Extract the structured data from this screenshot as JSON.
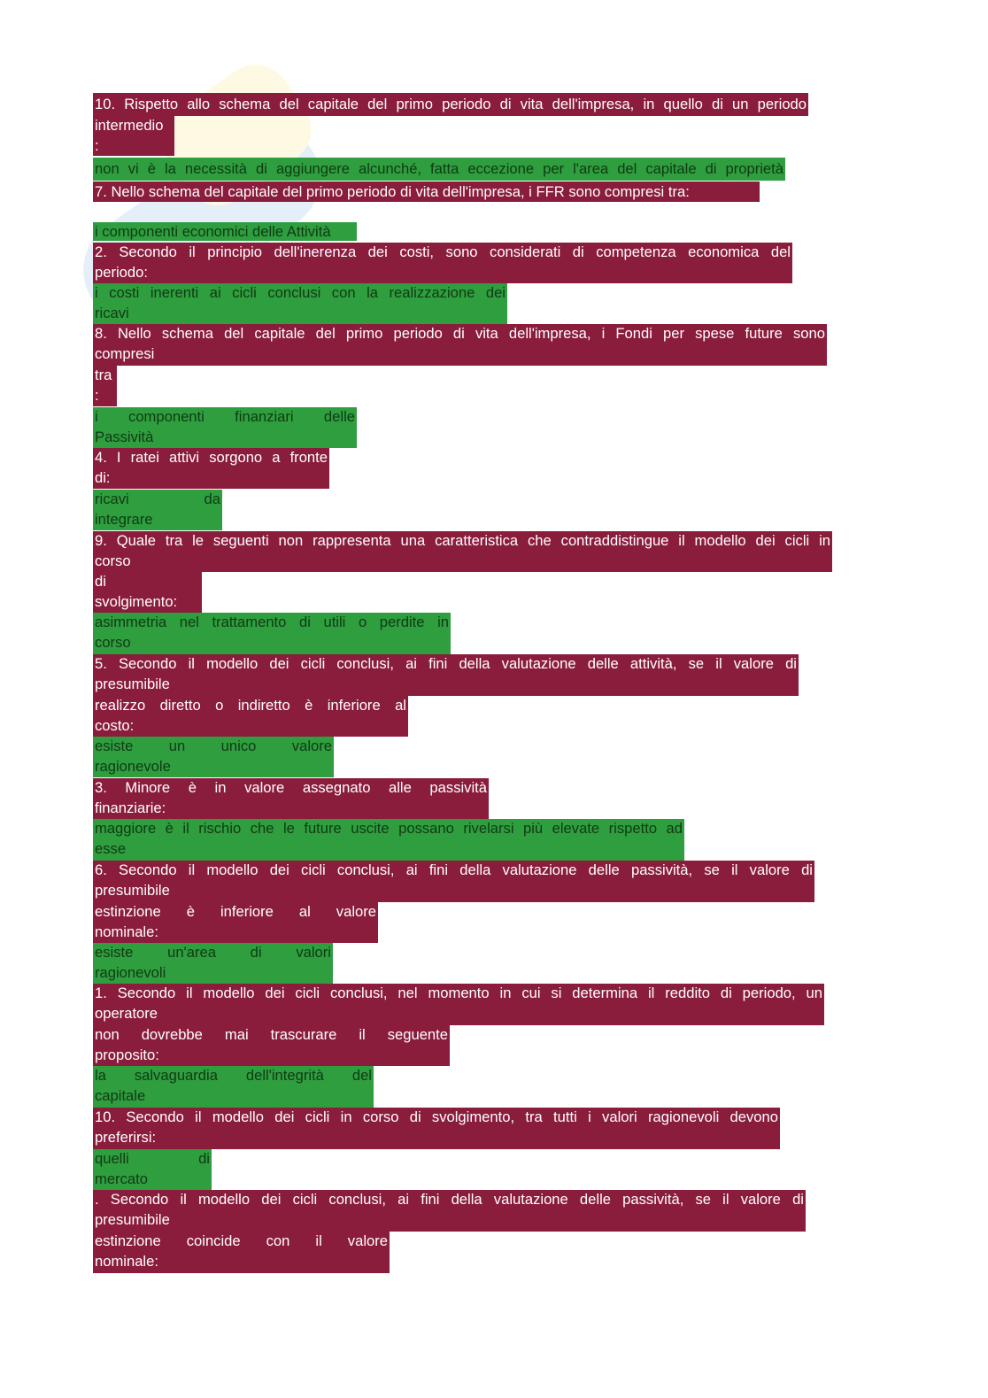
{
  "colors": {
    "question_bg": "#8a1c3c",
    "answer_bg": "#2e9e3f"
  },
  "blocks": [
    {
      "type": "question",
      "lines": [
        "10. Rispetto allo schema del capitale del primo periodo di vita dell'impresa, in quello di un periodo"
      ]
    },
    {
      "type": "question",
      "lines": [
        "intermedio",
        ":"
      ]
    },
    {
      "type": "answer",
      "lines": [
        "non vi è la necessità di aggiungere alcunché, fatta eccezione per l'area del capitale di proprietà"
      ]
    },
    {
      "type": "question",
      "lines": [
        "7. Nello schema del capitale del primo periodo di vita dell'impresa, i FFR sono compresi tra:"
      ]
    },
    {
      "type": "answer",
      "lines": [
        "i componenti economici delle Attività"
      ]
    },
    {
      "type": "question",
      "lines": [
        "2. Secondo il principio dell'inerenza dei costi, sono considerati di competenza economica del",
        "periodo:"
      ]
    },
    {
      "type": "answer",
      "lines": [
        "i costi inerenti ai cicli conclusi con la realizzazione dei",
        "ricavi"
      ]
    },
    {
      "type": "question",
      "lines": [
        "8. Nello schema del capitale del primo periodo di vita dell'impresa, i Fondi per spese future sono",
        "compresi"
      ]
    },
    {
      "type": "question",
      "lines": [
        "tra",
        ":"
      ]
    },
    {
      "type": "answer",
      "lines": [
        "i componenti finanziari delle",
        "Passività"
      ]
    },
    {
      "type": "question",
      "lines": [
        "4. I ratei attivi sorgono a fronte",
        "di:"
      ]
    },
    {
      "type": "answer",
      "lines": [
        "ricavi da",
        "integrare"
      ]
    },
    {
      "type": "question",
      "lines": [
        "9. Quale tra le seguenti non rappresenta una caratteristica che contraddistingue il modello dei cicli in",
        "corso"
      ]
    },
    {
      "type": "question",
      "lines": [
        "di",
        "svolgimento:"
      ]
    },
    {
      "type": "answer",
      "lines": [
        "asimmetria nel trattamento di utili o perdite in",
        "corso"
      ]
    },
    {
      "type": "question",
      "lines": [
        "5. Secondo il modello dei cicli conclusi, ai fini della valutazione delle attività, se il valore di",
        "presumibile"
      ]
    },
    {
      "type": "question",
      "lines": [
        "realizzo diretto o indiretto è inferiore al",
        "costo:"
      ]
    },
    {
      "type": "answer",
      "lines": [
        "esiste un unico valore",
        "ragionevole"
      ]
    },
    {
      "type": "question",
      "lines": [
        "3. Minore è in valore assegnato alle passività",
        "finanziarie:"
      ]
    },
    {
      "type": "answer",
      "lines": [
        "maggiore è il rischio che le future uscite possano rivelarsi più elevate rispetto ad",
        "esse"
      ]
    },
    {
      "type": "question",
      "lines": [
        "6. Secondo il modello dei cicli conclusi, ai fini della valutazione delle passività, se il valore di",
        "presumibile"
      ]
    },
    {
      "type": "question",
      "lines": [
        "estinzione è inferiore al valore",
        "nominale:"
      ]
    },
    {
      "type": "answer",
      "lines": [
        "esiste un'area di valori",
        "ragionevoli"
      ]
    },
    {
      "type": "question",
      "lines": [
        "1. Secondo il modello dei cicli conclusi, nel momento in cui si determina il reddito di periodo, un",
        "operatore"
      ]
    },
    {
      "type": "question",
      "lines": [
        "non dovrebbe mai trascurare il seguente",
        "proposito:"
      ]
    },
    {
      "type": "answer",
      "lines": [
        "la salvaguardia dell'integrità del",
        "capitale"
      ]
    },
    {
      "type": "question",
      "lines": [
        "10. Secondo il modello dei cicli in corso di svolgimento, tra tutti i valori ragionevoli devono",
        "preferirsi:"
      ]
    },
    {
      "type": "answer",
      "lines": [
        "quelli di",
        "mercato"
      ]
    },
    {
      "type": "question",
      "lines": [
        ". Secondo il modello dei cicli conclusi, ai fini della valutazione delle passività, se il valore di",
        "presumibile"
      ]
    },
    {
      "type": "question",
      "lines": [
        "estinzione coincide con il valore",
        "nominale:"
      ]
    }
  ]
}
